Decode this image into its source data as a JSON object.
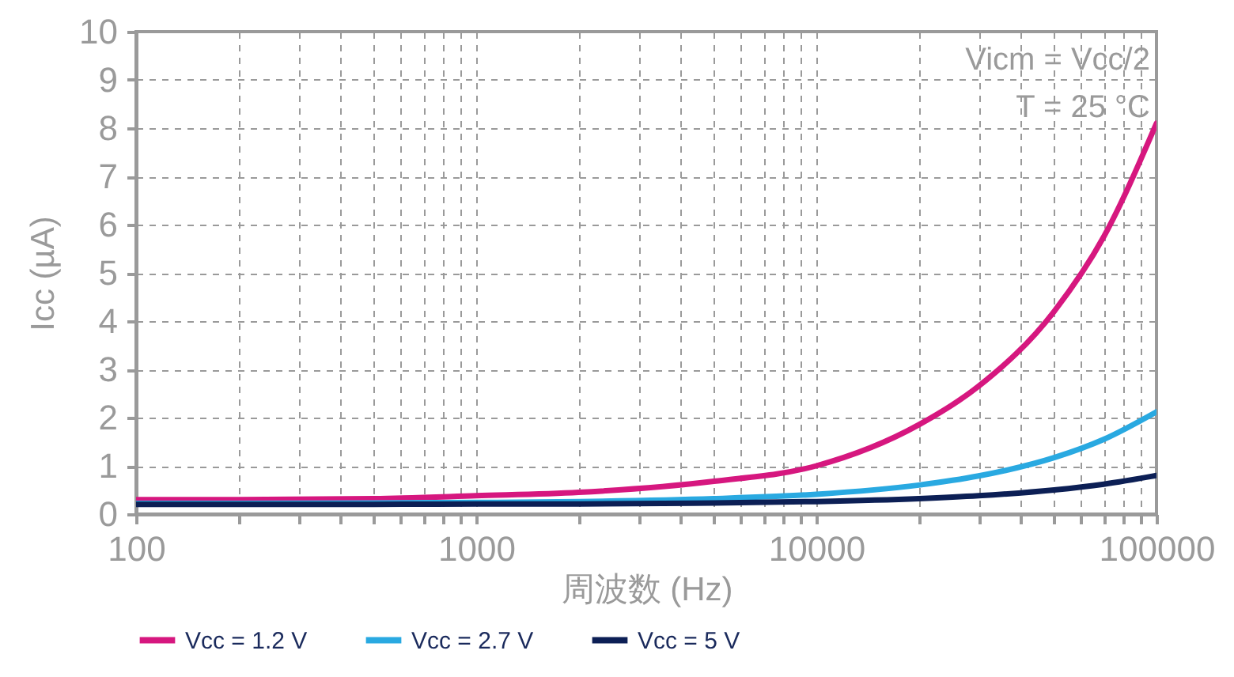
{
  "chart_data": {
    "type": "line",
    "xlabel": "周波数 (Hz)",
    "ylabel": "Icc (µA)",
    "log": "x",
    "grid": true,
    "legend": "bottom",
    "annotations": [
      "Vicm = Vcc/2",
      "T = 25 °C"
    ],
    "xlim": [
      100,
      100000
    ],
    "xticks": [
      100,
      {
        "value": 200,
        "label": null
      },
      {
        "value": 300,
        "label": null
      },
      {
        "value": 400,
        "label": null
      },
      {
        "value": 500,
        "label": null
      },
      {
        "value": 600,
        "label": null
      },
      {
        "value": 700,
        "label": null
      },
      {
        "value": 800,
        "label": null
      },
      {
        "value": 900,
        "label": null
      },
      1000,
      {
        "value": 2000,
        "label": null
      },
      {
        "value": 3000,
        "label": null
      },
      {
        "value": 4000,
        "label": null
      },
      {
        "value": 5000,
        "label": null
      },
      {
        "value": 6000,
        "label": null
      },
      {
        "value": 7000,
        "label": null
      },
      {
        "value": 8000,
        "label": null
      },
      {
        "value": 9000,
        "label": null
      },
      10000,
      {
        "value": 20000,
        "label": null
      },
      {
        "value": 30000,
        "label": null
      },
      {
        "value": 40000,
        "label": null
      },
      {
        "value": 50000,
        "label": null
      },
      {
        "value": 60000,
        "label": null
      },
      {
        "value": 70000,
        "label": null
      },
      {
        "value": 80000,
        "label": null
      },
      {
        "value": 90000,
        "label": null
      },
      100000
    ],
    "ylim": [
      0,
      10
    ],
    "yticks": [
      0,
      1,
      2,
      3,
      4,
      5,
      6,
      7,
      8,
      9,
      10
    ],
    "x": [
      100,
      200,
      500,
      1000,
      2000,
      5000,
      10000,
      20000,
      30000,
      50000,
      70000,
      100000
    ],
    "series": [
      {
        "name": "Vcc = 1.2 V",
        "color": "#d6177f",
        "values": [
          0.3,
          0.3,
          0.32,
          0.38,
          0.45,
          0.68,
          1.0,
          1.85,
          2.65,
          4.2,
          5.75,
          8.1
        ]
      },
      {
        "name": "Vcc = 2.7 V",
        "color": "#29a9e1",
        "values": [
          0.22,
          0.22,
          0.23,
          0.24,
          0.26,
          0.32,
          0.41,
          0.6,
          0.79,
          1.17,
          1.55,
          2.12
        ]
      },
      {
        "name": "Vcc = 5 V",
        "color": "#0c1f55",
        "values": [
          0.2,
          0.2,
          0.2,
          0.21,
          0.21,
          0.23,
          0.26,
          0.32,
          0.38,
          0.5,
          0.62,
          0.8
        ]
      }
    ]
  }
}
